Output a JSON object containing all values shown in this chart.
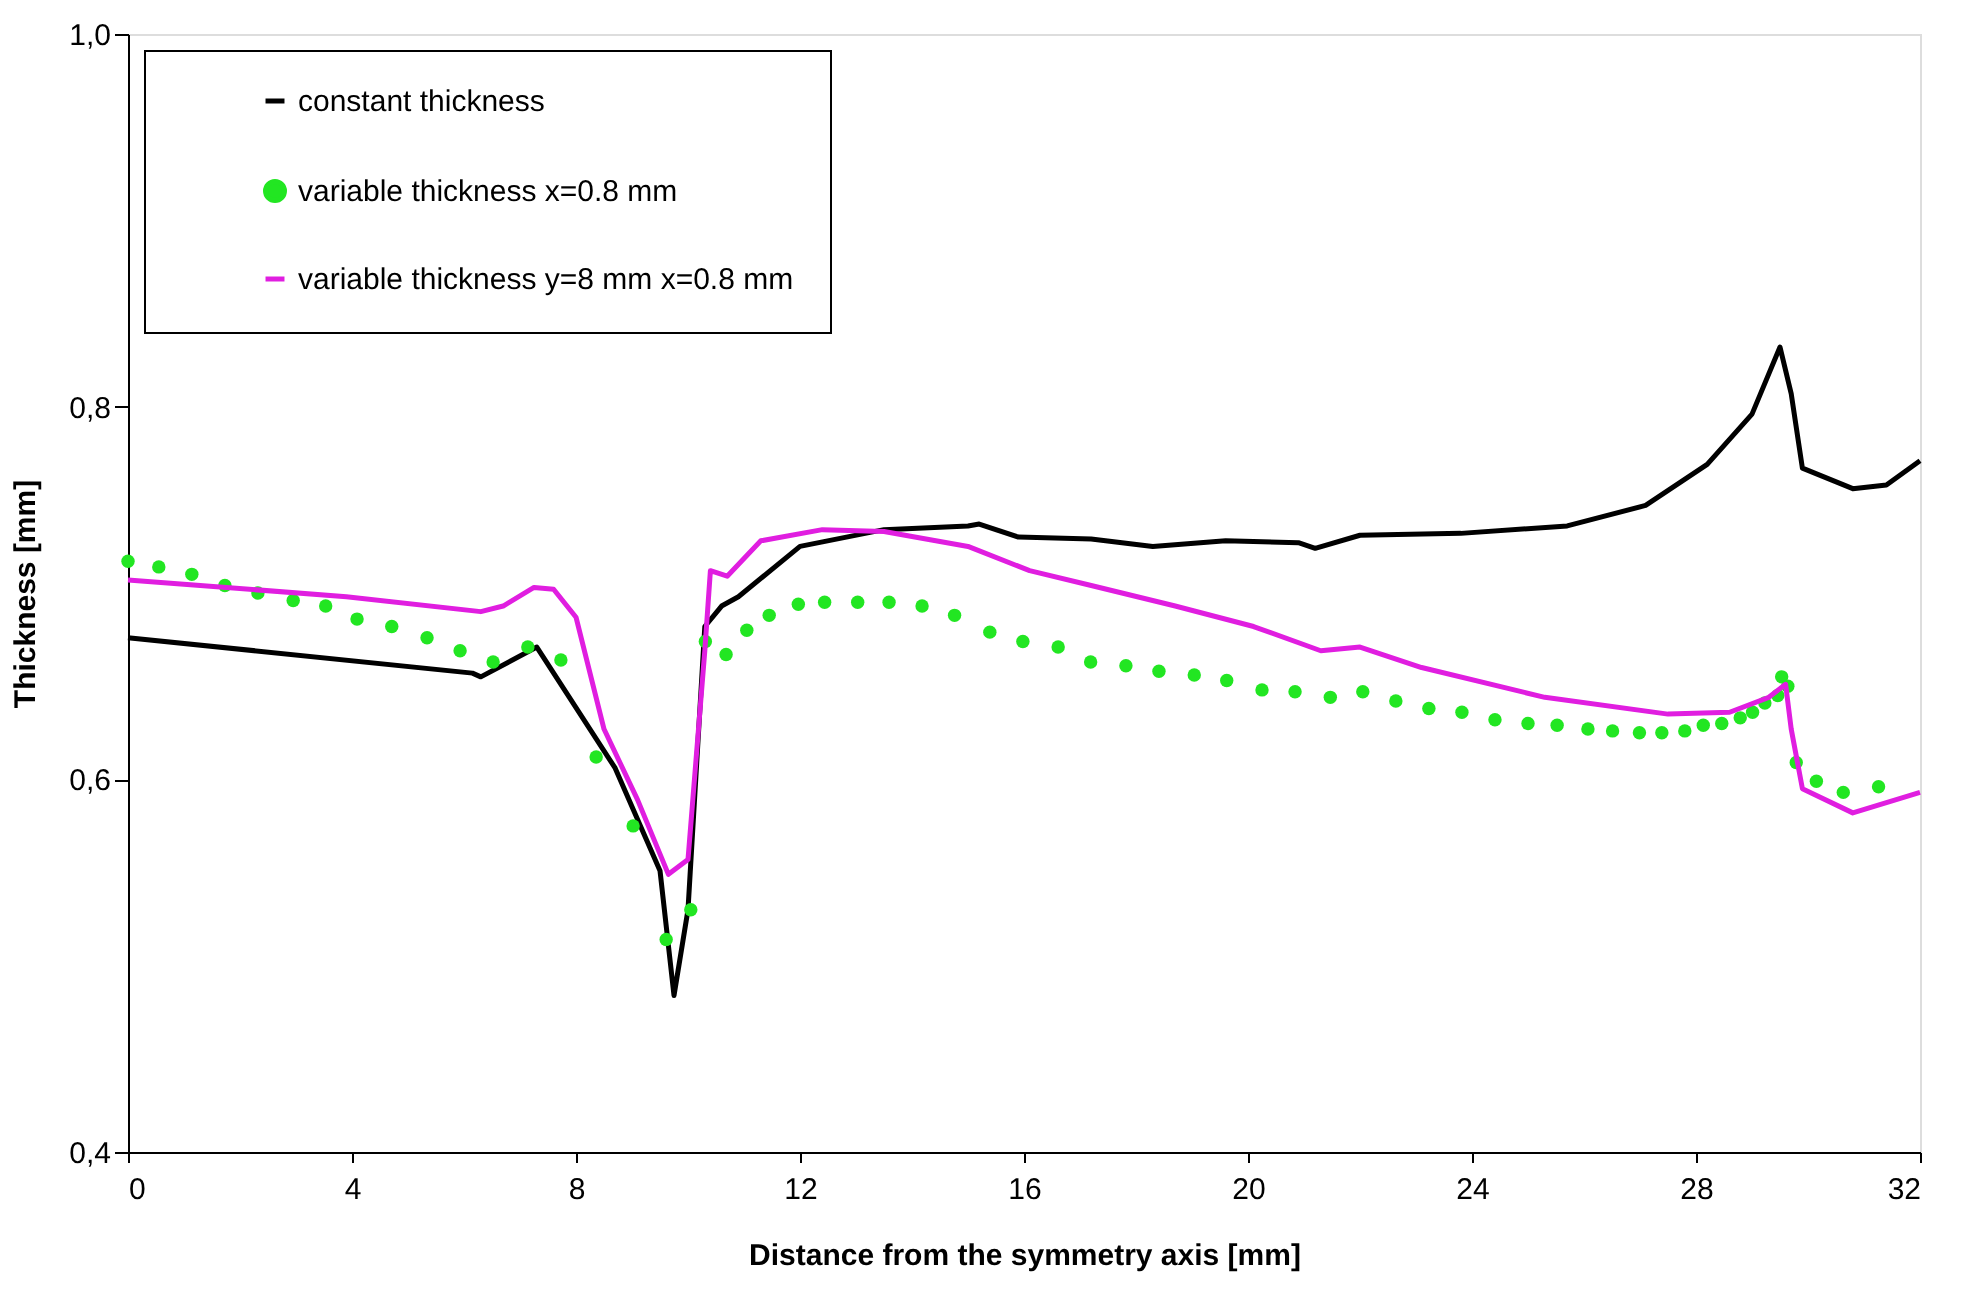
{
  "chart_data": {
    "type": "line",
    "xlabel": "Distance from the symmetry axis [mm]",
    "ylabel": "Thickness [mm]",
    "xlim": [
      0,
      32
    ],
    "xticks": [
      0,
      4,
      8,
      12,
      16,
      20,
      24,
      28,
      32
    ],
    "ylim": [
      0.4,
      1.0
    ],
    "yticks": [
      {
        "value": 0.4,
        "label": "0,4"
      },
      {
        "value": 0.6,
        "label": "0,6"
      },
      {
        "value": 0.8,
        "label": "0,8"
      },
      {
        "value": 1.0,
        "label": "1,0"
      }
    ],
    "grid": false,
    "legend": "top left",
    "series": [
      {
        "name": "constant thickness",
        "color": "#000000",
        "marker": "none",
        "x": [
          0,
          6.15,
          6.3,
          7.3,
          8.7,
          9.5,
          9.75,
          10.0,
          10.3,
          10.6,
          10.9,
          12.0,
          13.5,
          15.0,
          15.2,
          15.9,
          17.2,
          18.3,
          19.6,
          20.9,
          21.2,
          22.0,
          23.8,
          25.7,
          27.1,
          28.2,
          29.0,
          29.5,
          29.7,
          29.9,
          30.8,
          31.4,
          32
        ],
        "values": [
          0.676,
          0.657,
          0.655,
          0.671,
          0.606,
          0.551,
          0.484,
          0.53,
          0.682,
          0.693,
          0.698,
          0.725,
          0.734,
          0.736,
          0.737,
          0.73,
          0.729,
          0.725,
          0.728,
          0.727,
          0.724,
          0.731,
          0.732,
          0.736,
          0.747,
          0.769,
          0.796,
          0.832,
          0.807,
          0.767,
          0.756,
          0.758,
          0.771
        ]
      },
      {
        "name": "variable thickness x=0.8 mm",
        "color": "#22e622",
        "type": "scatter",
        "marker": "circle",
        "x": [
          0,
          0.55,
          1.14,
          1.73,
          2.32,
          2.95,
          3.53,
          4.09,
          4.71,
          5.34,
          5.93,
          6.52,
          7.14,
          7.73,
          8.36,
          9.02,
          9.61,
          10.05,
          10.31,
          10.68,
          11.05,
          11.45,
          11.97,
          12.44,
          13.03,
          13.59,
          14.18,
          14.76,
          15.39,
          15.98,
          16.61,
          17.19,
          17.82,
          18.41,
          19.04,
          19.62,
          20.25,
          20.84,
          21.47,
          22.05,
          22.64,
          23.23,
          23.82,
          24.41,
          25.0,
          25.52,
          26.07,
          26.51,
          26.99,
          27.39,
          27.8,
          28.13,
          28.46,
          28.79,
          29.01,
          29.23,
          29.46,
          29.53,
          29.64,
          29.79,
          30.15,
          30.63,
          31.26
        ],
        "values": [
          0.717,
          0.714,
          0.71,
          0.704,
          0.7,
          0.696,
          0.693,
          0.686,
          0.682,
          0.676,
          0.669,
          0.663,
          0.671,
          0.664,
          0.612,
          0.575,
          0.514,
          0.53,
          0.674,
          0.667,
          0.68,
          0.688,
          0.694,
          0.695,
          0.695,
          0.695,
          0.693,
          0.688,
          0.679,
          0.674,
          0.671,
          0.663,
          0.661,
          0.658,
          0.656,
          0.653,
          0.648,
          0.647,
          0.644,
          0.647,
          0.642,
          0.638,
          0.636,
          0.632,
          0.63,
          0.629,
          0.627,
          0.626,
          0.625,
          0.625,
          0.626,
          0.629,
          0.63,
          0.633,
          0.636,
          0.641,
          0.645,
          0.655,
          0.65,
          0.609,
          0.599,
          0.593,
          0.596
        ]
      },
      {
        "name": "variable thickness y=8 mm x=0.8 mm",
        "color": "#e01ee0",
        "marker": "none",
        "x": [
          0,
          3.9,
          6.3,
          6.7,
          7.25,
          7.6,
          8.0,
          8.5,
          9.1,
          9.65,
          10.0,
          10.3,
          10.4,
          10.7,
          11.3,
          12.4,
          13.5,
          15.0,
          16.1,
          17.2,
          18.7,
          20.1,
          21.3,
          22.0,
          23.1,
          25.3,
          27.5,
          28.6,
          29.3,
          29.6,
          29.7,
          29.9,
          30.8,
          32
        ],
        "values": [
          0.707,
          0.698,
          0.69,
          0.693,
          0.703,
          0.702,
          0.687,
          0.627,
          0.589,
          0.549,
          0.557,
          0.669,
          0.712,
          0.709,
          0.728,
          0.734,
          0.733,
          0.725,
          0.712,
          0.704,
          0.693,
          0.682,
          0.669,
          0.671,
          0.66,
          0.644,
          0.635,
          0.636,
          0.644,
          0.651,
          0.627,
          0.595,
          0.582,
          0.593
        ]
      }
    ]
  }
}
